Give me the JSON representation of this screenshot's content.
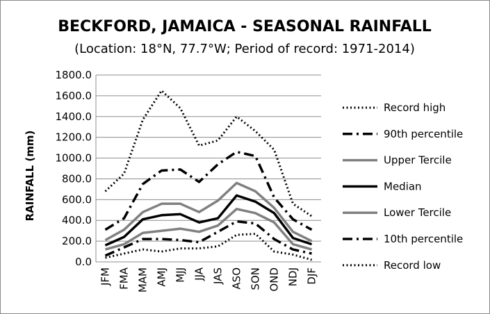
{
  "chart_data": {
    "type": "line",
    "title": "BECKFORD, JAMAICA - SEASONAL RAINFALL",
    "subtitle": "(Location: 18°N, 77.7°W; Period of record: 1971-2014)",
    "xlabel": "",
    "ylabel": "RAINFALL (mm)",
    "ylim": [
      0,
      1800
    ],
    "yticks": [
      "0.0",
      "200.0",
      "400.0",
      "600.0",
      "800.0",
      "1000.0",
      "1200.0",
      "1400.0",
      "1600.0",
      "1800.0"
    ],
    "categories": [
      "JFM",
      "FMA",
      "MAM",
      "AMJ",
      "MJJ",
      "JJA",
      "JAS",
      "ASO",
      "SON",
      "OND",
      "NDJ",
      "DJF"
    ],
    "grid": true,
    "legend_position": "right",
    "series": [
      {
        "name": "Record high",
        "style": "dotted",
        "color": "#000000",
        "values": [
          680,
          850,
          1370,
          1650,
          1480,
          1120,
          1170,
          1400,
          1260,
          1080,
          560,
          440
        ]
      },
      {
        "name": "90th percentile",
        "style": "dashdot",
        "color": "#000000",
        "values": [
          310,
          420,
          750,
          880,
          890,
          770,
          940,
          1060,
          1020,
          620,
          410,
          310
        ]
      },
      {
        "name": "Upper Tercile",
        "style": "solid",
        "color": "#808080",
        "values": [
          210,
          310,
          480,
          560,
          560,
          480,
          590,
          760,
          680,
          520,
          290,
          200
        ]
      },
      {
        "name": "Median",
        "style": "solid",
        "color": "#000000",
        "values": [
          160,
          240,
          410,
          450,
          460,
          380,
          420,
          640,
          580,
          470,
          230,
          170
        ]
      },
      {
        "name": "Lower Tercile",
        "style": "solid",
        "color": "#808080",
        "values": [
          120,
          170,
          280,
          300,
          320,
          290,
          350,
          510,
          470,
          380,
          170,
          120
        ]
      },
      {
        "name": "10th percentile",
        "style": "dashdot",
        "color": "#000000",
        "values": [
          60,
          140,
          220,
          220,
          210,
          190,
          290,
          390,
          370,
          220,
          120,
          80
        ]
      },
      {
        "name": "Record low",
        "style": "dotted",
        "color": "#000000",
        "values": [
          40,
          80,
          120,
          100,
          130,
          130,
          150,
          260,
          270,
          100,
          70,
          20
        ]
      }
    ]
  }
}
